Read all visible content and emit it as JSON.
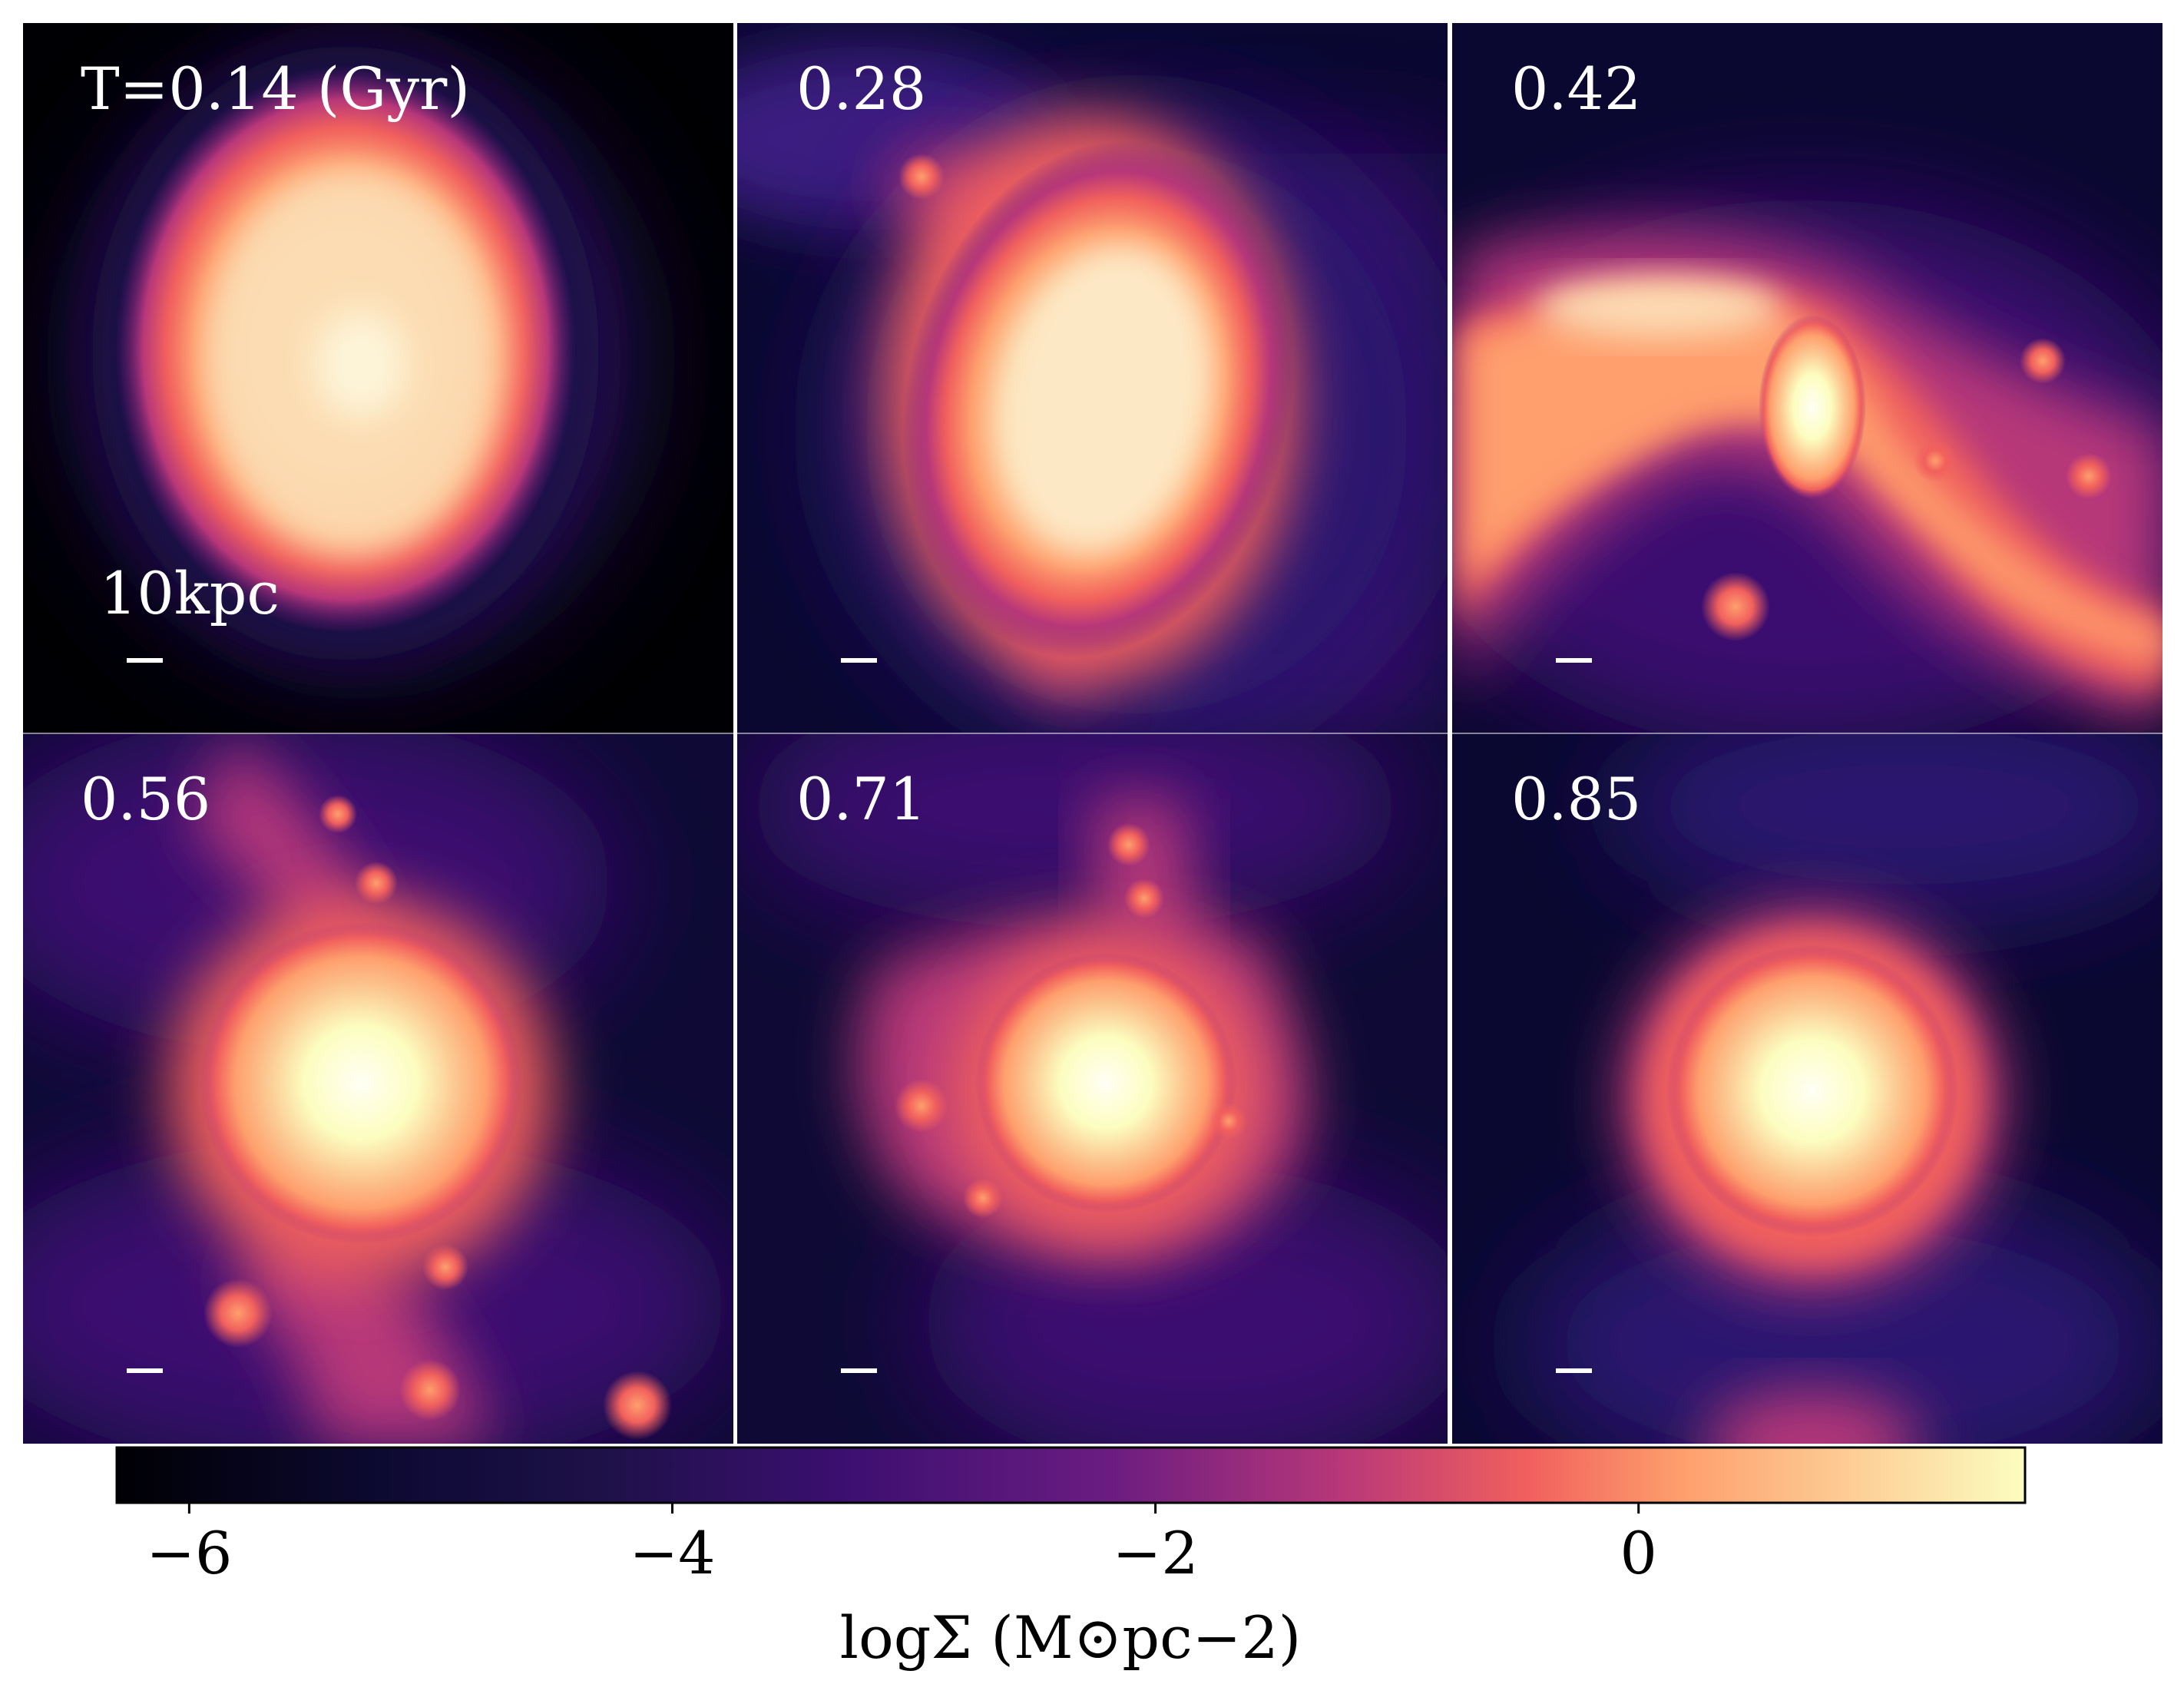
{
  "chart_data": {
    "type": "heatmap",
    "title": "",
    "colormap": "magma",
    "colormap_stops": [
      "#000004",
      "#1d1147",
      "#3b0f70",
      "#6a1c81",
      "#b73779",
      "#f1605d",
      "#fe9f6d",
      "#fcfdbf"
    ],
    "panels": [
      {
        "label": "T=0.14 (Gyr)",
        "time_gyr": 0.14,
        "morphology": "single elliptical disk",
        "scale_bar": "10kpc"
      },
      {
        "label": "0.28",
        "time_gyr": 0.28,
        "morphology": "tilted disk with tidal arm"
      },
      {
        "label": "0.42",
        "time_gyr": 0.42,
        "morphology": "tidal stream with clumps"
      },
      {
        "label": "0.56",
        "time_gyr": 0.56,
        "morphology": "central core with tidal tails"
      },
      {
        "label": "0.71",
        "time_gyr": 0.71,
        "morphology": "merging core with clumps"
      },
      {
        "label": "0.85",
        "time_gyr": 0.85,
        "morphology": "relaxed spheroidal remnant"
      }
    ],
    "colorbar": {
      "label": "logΣ (M⊙pc−2)",
      "ticks": [
        -6,
        -4,
        -2,
        0
      ],
      "tick_labels": [
        "−6",
        "−4",
        "−2",
        "0"
      ],
      "range": [
        -6.3,
        1.6
      ]
    }
  }
}
